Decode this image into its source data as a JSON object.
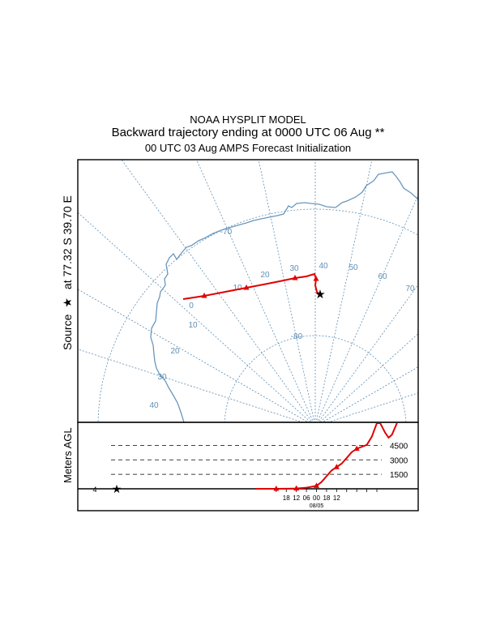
{
  "header": {
    "model": "NOAA HYSPLIT MODEL",
    "title": "Backward trajectory ending at 0000 UTC 06 Aug **",
    "subtitle": "00 UTC 03 Aug    AMPS  Forecast Initialization"
  },
  "side_label": {
    "prefix": "Source",
    "star": "★",
    "suffix": "at   77.32 S   39.70 E"
  },
  "map": {
    "colors": {
      "grid": "#5f8fb4",
      "coast": "#6b97bd",
      "trajectory": "#e00000",
      "frame": "#000000"
    },
    "longitude_labels": [
      "0",
      "10",
      "20",
      "30",
      "40",
      "50",
      "60",
      "70",
      "10",
      "20",
      "30",
      "40"
    ],
    "latitude_labels": [
      "-70",
      "-80"
    ]
  },
  "chart_data": {
    "type": "line",
    "title": "Backward trajectory ending at 0000 UTC 06 Aug **",
    "trajectory_map": {
      "source": {
        "lat": -77.32,
        "lon": 39.7
      },
      "marker_interval_hours": 6
    },
    "vertical_profile": {
      "ylabel": "Meters AGL",
      "reference_levels": [
        1500,
        3000,
        4500
      ],
      "reference_labels": [
        "1500",
        "3000",
        "4500"
      ],
      "x_tick_labels": [
        "18",
        "12",
        "06",
        "00",
        "18",
        "12"
      ],
      "date_label": "08/05",
      "start_label": "4",
      "series": [
        {
          "values": [
            {
              "h": -72,
              "m": 0
            },
            {
              "h": -69,
              "m": 0
            },
            {
              "h": -66,
              "m": 0
            },
            {
              "h": -63,
              "m": 0
            },
            {
              "h": -60,
              "m": 0
            },
            {
              "h": -54,
              "m": 10
            },
            {
              "h": -48,
              "m": 30
            },
            {
              "h": -42,
              "m": 120
            },
            {
              "h": -36,
              "m": 300
            },
            {
              "h": -33,
              "m": 700
            },
            {
              "h": -30,
              "m": 1300
            },
            {
              "h": -27,
              "m": 1900
            },
            {
              "h": -24,
              "m": 2250
            },
            {
              "h": -21,
              "m": 2600
            },
            {
              "h": -18,
              "m": 3200
            },
            {
              "h": -15,
              "m": 3800
            },
            {
              "h": -12,
              "m": 4150
            },
            {
              "h": -9,
              "m": 4350
            },
            {
              "h": -6,
              "m": 4550
            },
            {
              "h": -3,
              "m": 5400
            },
            {
              "h": 0,
              "m": 6800
            },
            {
              "h": 2,
              "m": 6800
            },
            {
              "h": 5,
              "m": 5800
            },
            {
              "h": 7,
              "m": 5300
            },
            {
              "h": 9,
              "m": 5600
            },
            {
              "h": 12,
              "m": 6800
            }
          ],
          "markers_h": [
            -60,
            -48,
            -36,
            -24,
            -12
          ]
        }
      ]
    }
  }
}
